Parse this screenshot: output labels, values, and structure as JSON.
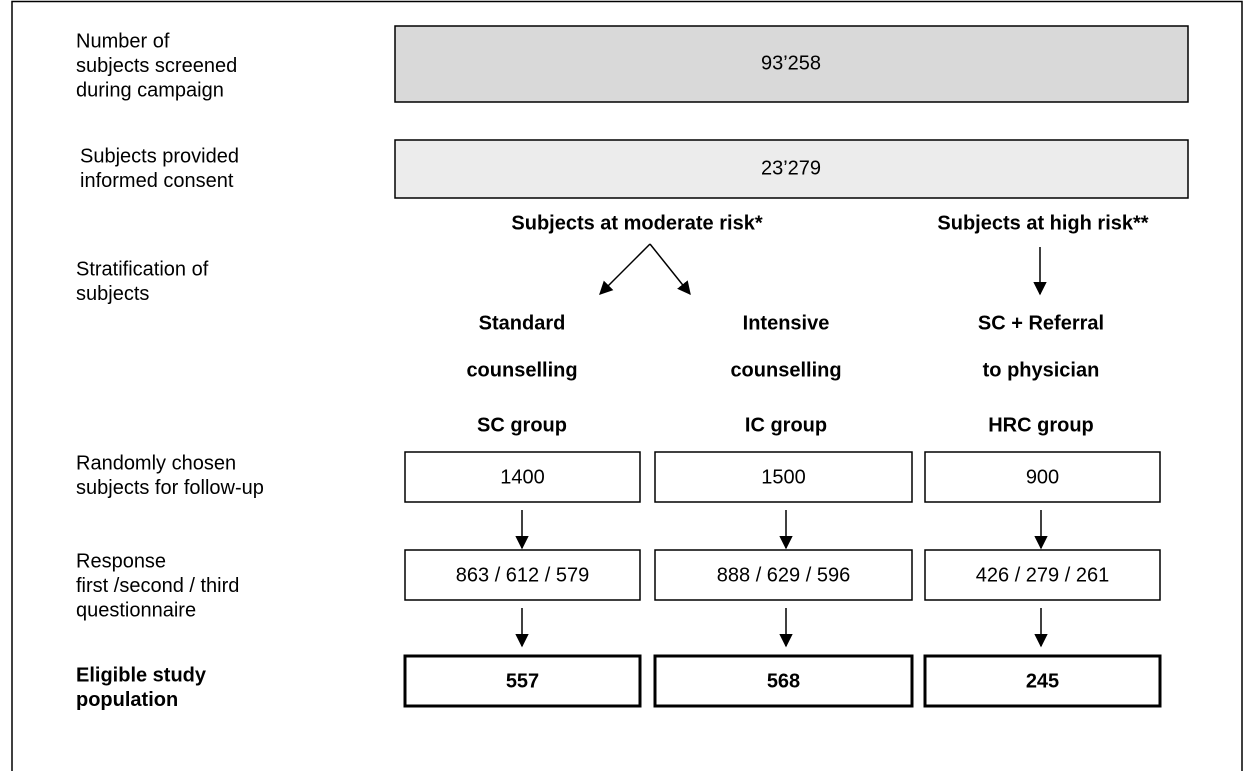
{
  "left_labels": [
    [
      "Number of",
      "subjects screened",
      "during campaign"
    ],
    [
      "Subjects provided",
      "informed consent"
    ],
    [
      "Stratification of",
      "subjects"
    ],
    [
      "Randomly chosen",
      "subjects for follow-up"
    ],
    [
      "Response",
      "first /second / third",
      "questionnaire"
    ],
    [
      "Eligible study",
      "population"
    ]
  ],
  "screened": "93’258",
  "consented": "23’279",
  "risk_levels": [
    "Subjects at moderate risk*",
    "Subjects at high risk**"
  ],
  "groups": [
    {
      "treatment": [
        "Standard",
        "counselling"
      ],
      "name": "SC group",
      "followup": "1400",
      "response": "863 / 612 / 579",
      "eligible": "557"
    },
    {
      "treatment": [
        "Intensive",
        "counselling"
      ],
      "name": "IC group",
      "followup": "1500",
      "response": "888 / 629 / 596",
      "eligible": "568"
    },
    {
      "treatment": [
        "SC + Referral",
        "to physician"
      ],
      "name": "HRC group",
      "followup": "900",
      "response": "426 / 279 / 261",
      "eligible": "245"
    }
  ]
}
